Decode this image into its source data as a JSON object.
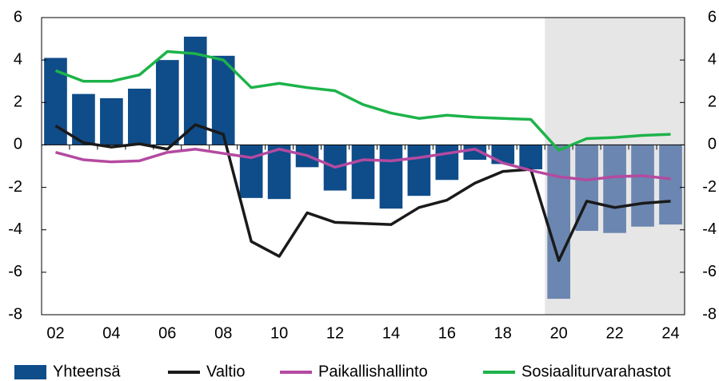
{
  "chart_data": {
    "type": "bar",
    "categories": [
      "02",
      null,
      "04",
      null,
      "06",
      null,
      "08",
      null,
      "10",
      null,
      "12",
      null,
      "14",
      null,
      "16",
      null,
      "18",
      null,
      "20",
      null,
      "22",
      null,
      "24"
    ],
    "series": [
      {
        "name": "Yhteensä",
        "type": "bar",
        "color": "#0f4c8a",
        "forecast_color": "#6b86b0",
        "values": [
          4.1,
          2.4,
          2.2,
          2.65,
          4.0,
          5.1,
          4.2,
          -2.5,
          -2.55,
          -1.05,
          -2.15,
          -2.55,
          -3.0,
          -2.4,
          -1.65,
          -0.7,
          -0.9,
          -1.15,
          -7.25,
          -4.05,
          -4.15,
          -3.85,
          -3.75
        ]
      },
      {
        "name": "Valtio",
        "type": "line",
        "color": "#1a1a1a",
        "values": [
          0.9,
          0.1,
          -0.1,
          0.05,
          -0.2,
          0.95,
          0.5,
          -4.55,
          -5.25,
          -3.2,
          -3.65,
          -3.7,
          -3.75,
          -2.95,
          -2.6,
          -1.8,
          -1.25,
          -1.15,
          -5.45,
          -2.65,
          -2.95,
          -2.75,
          -2.65
        ]
      },
      {
        "name": "Paikallishallinto",
        "type": "line",
        "color": "#b44aa0",
        "values": [
          -0.35,
          -0.7,
          -0.8,
          -0.75,
          -0.35,
          -0.2,
          -0.4,
          -0.6,
          -0.2,
          -0.5,
          -1.05,
          -0.7,
          -0.75,
          -0.6,
          -0.4,
          -0.2,
          -0.85,
          -1.2,
          -1.5,
          -1.65,
          -1.5,
          -1.45,
          -1.6
        ]
      },
      {
        "name": "Sosiaaliturvarahastot",
        "type": "line",
        "color": "#1db34a",
        "values": [
          3.5,
          3.0,
          3.0,
          3.3,
          4.4,
          4.3,
          4.0,
          2.7,
          2.9,
          2.7,
          2.55,
          1.9,
          1.5,
          1.25,
          1.4,
          1.3,
          1.25,
          1.2,
          -0.25,
          0.3,
          0.35,
          0.45,
          0.5
        ]
      }
    ],
    "ylim": [
      -8,
      6
    ],
    "yticks": [
      -8,
      -6,
      -4,
      -2,
      0,
      2,
      4,
      6
    ],
    "y2lim": [
      -8,
      6
    ],
    "y2ticks": [
      -8,
      -6,
      -4,
      -2,
      0,
      2,
      4,
      6
    ],
    "legend": "bottom"
  }
}
